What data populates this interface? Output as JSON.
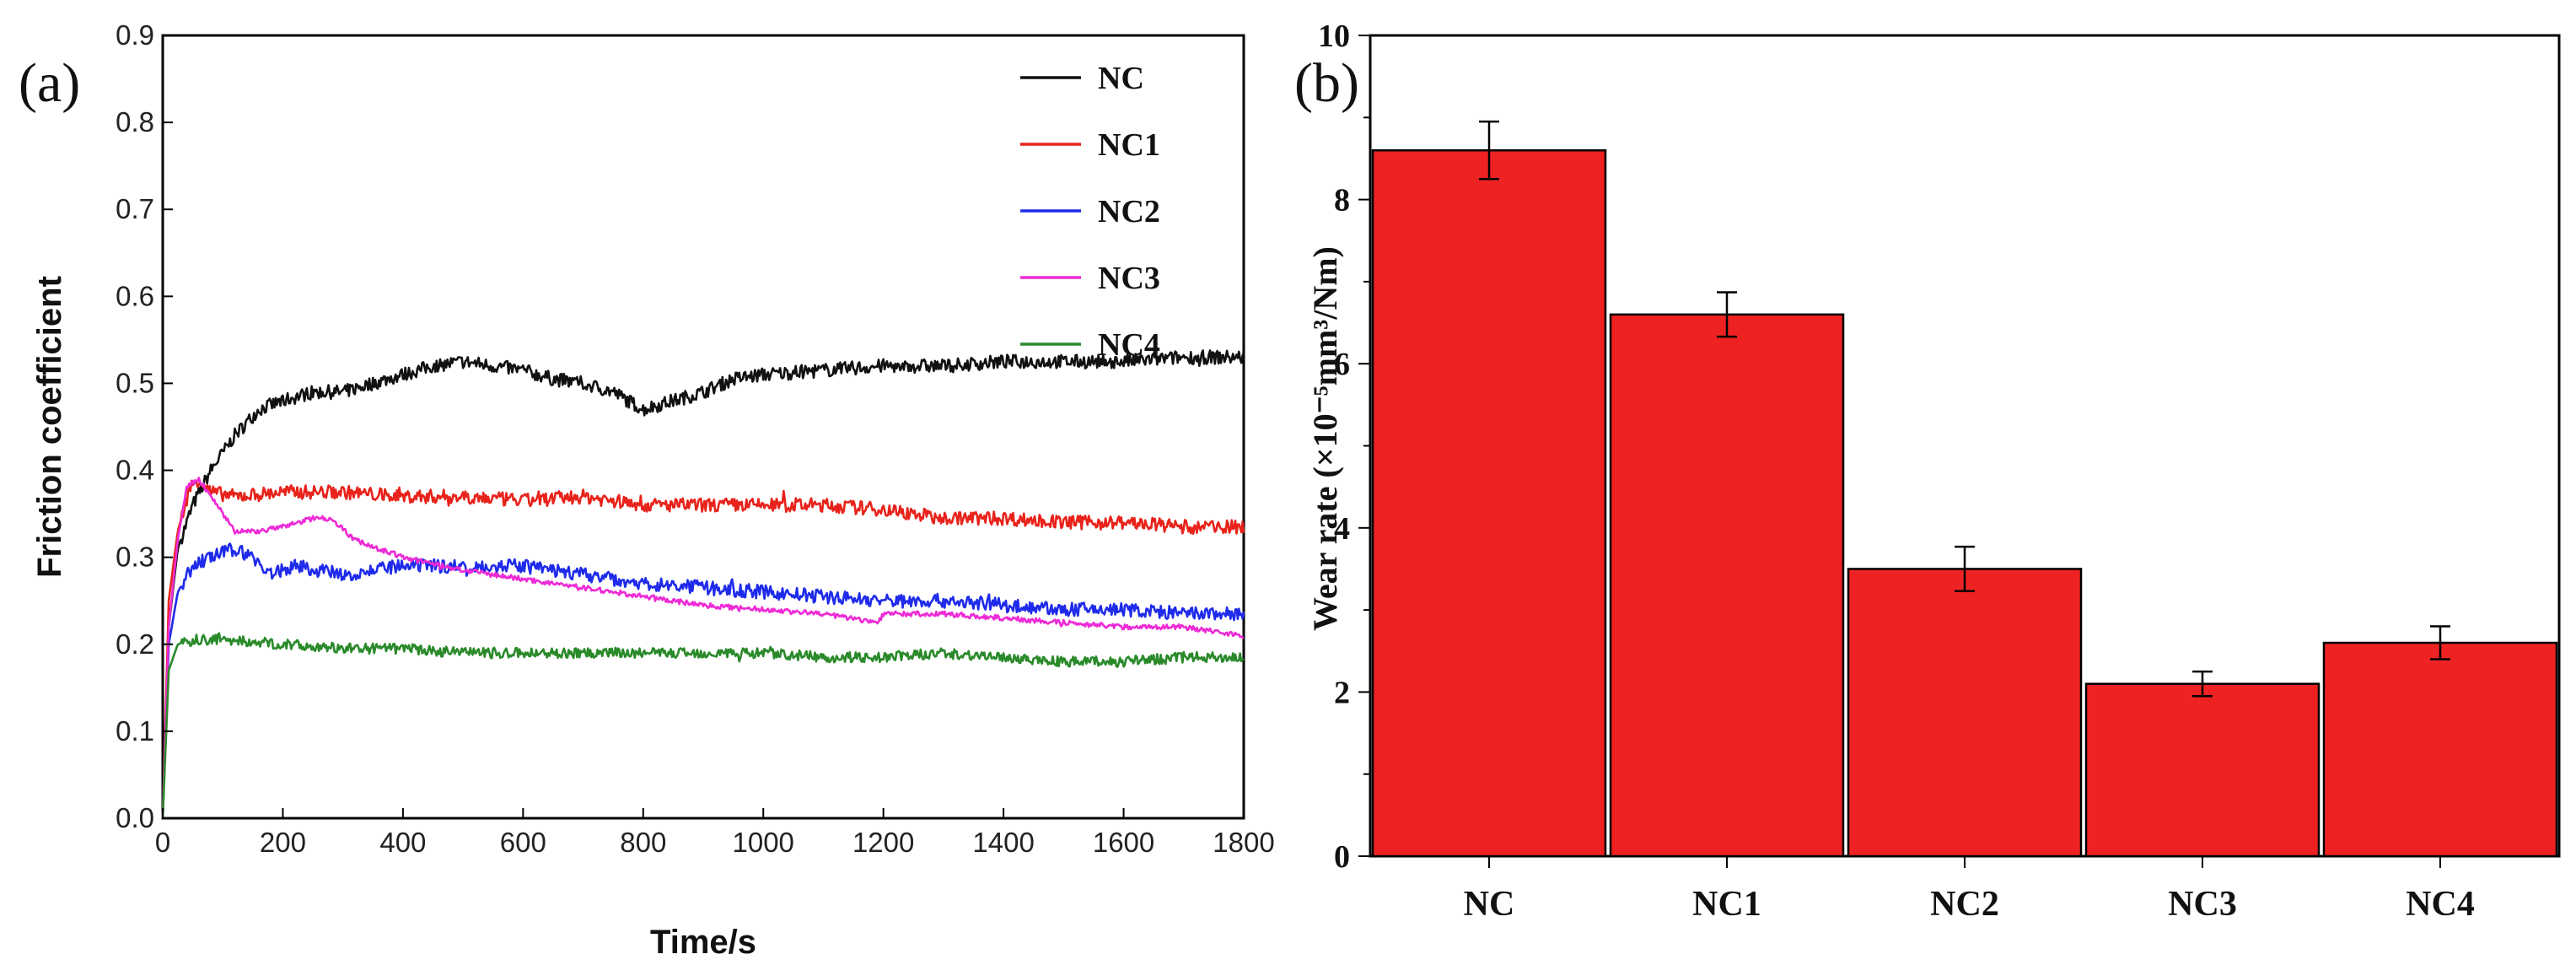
{
  "chart_data": [
    {
      "panel_label": "(a)",
      "type": "line",
      "xlabel": "Time/s",
      "ylabel": "Friction coefficient",
      "xlim": [
        0,
        1800
      ],
      "ylim": [
        0.0,
        0.9
      ],
      "xticks": [
        "0",
        "200",
        "400",
        "600",
        "800",
        "1000",
        "1200",
        "1400",
        "1600",
        "1800"
      ],
      "yticks": [
        "0.0",
        "0.1",
        "0.2",
        "0.3",
        "0.4",
        "0.5",
        "0.6",
        "0.7",
        "0.8",
        "0.9"
      ],
      "legend_position": "top-right",
      "series": [
        {
          "name": "NC",
          "color": "#111111",
          "noise": 0.008,
          "x": [
            0,
            10,
            25,
            50,
            80,
            120,
            160,
            200,
            250,
            300,
            350,
            400,
            450,
            500,
            550,
            600,
            650,
            700,
            750,
            800,
            850,
            900,
            950,
            1000,
            1100,
            1200,
            1300,
            1400,
            1500,
            1600,
            1700,
            1800
          ],
          "y": [
            0.0,
            0.22,
            0.31,
            0.36,
            0.4,
            0.44,
            0.47,
            0.48,
            0.49,
            0.49,
            0.5,
            0.51,
            0.52,
            0.525,
            0.52,
            0.515,
            0.505,
            0.5,
            0.49,
            0.47,
            0.48,
            0.49,
            0.505,
            0.51,
            0.515,
            0.52,
            0.52,
            0.525,
            0.525,
            0.525,
            0.53,
            0.53
          ]
        },
        {
          "name": "NC1",
          "color": "#e8231b",
          "noise": 0.008,
          "x": [
            0,
            10,
            25,
            45,
            60,
            80,
            120,
            200,
            300,
            400,
            500,
            600,
            700,
            800,
            900,
            1000,
            1100,
            1200,
            1300,
            1400,
            1500,
            1600,
            1700,
            1800
          ],
          "y": [
            0.0,
            0.25,
            0.33,
            0.38,
            0.39,
            0.375,
            0.37,
            0.375,
            0.375,
            0.37,
            0.37,
            0.365,
            0.37,
            0.36,
            0.36,
            0.36,
            0.36,
            0.355,
            0.345,
            0.345,
            0.34,
            0.34,
            0.335,
            0.335
          ]
        },
        {
          "name": "NC2",
          "color": "#1f2bea",
          "noise": 0.008,
          "x": [
            0,
            10,
            25,
            50,
            80,
            120,
            150,
            180,
            220,
            300,
            400,
            500,
            600,
            700,
            800,
            900,
            1000,
            1100,
            1200,
            1300,
            1400,
            1500,
            1600,
            1700,
            1800
          ],
          "y": [
            0.0,
            0.2,
            0.26,
            0.29,
            0.3,
            0.31,
            0.3,
            0.28,
            0.29,
            0.28,
            0.29,
            0.29,
            0.29,
            0.28,
            0.27,
            0.265,
            0.26,
            0.255,
            0.25,
            0.25,
            0.245,
            0.24,
            0.24,
            0.235,
            0.235
          ]
        },
        {
          "name": "NC3",
          "color": "#ee2ad6",
          "noise": 0.003,
          "x": [
            0,
            10,
            25,
            40,
            60,
            90,
            120,
            160,
            200,
            250,
            280,
            320,
            400,
            500,
            600,
            700,
            800,
            900,
            1000,
            1100,
            1190,
            1200,
            1300,
            1400,
            1500,
            1600,
            1700,
            1750,
            1800
          ],
          "y": [
            0.0,
            0.22,
            0.32,
            0.38,
            0.39,
            0.36,
            0.33,
            0.33,
            0.335,
            0.345,
            0.345,
            0.32,
            0.3,
            0.285,
            0.275,
            0.265,
            0.255,
            0.245,
            0.24,
            0.235,
            0.225,
            0.235,
            0.235,
            0.23,
            0.225,
            0.22,
            0.22,
            0.215,
            0.21
          ]
        },
        {
          "name": "NC4",
          "color": "#2a8a2a",
          "noise": 0.006,
          "x": [
            0,
            10,
            25,
            50,
            100,
            200,
            300,
            400,
            500,
            600,
            700,
            800,
            900,
            1000,
            1100,
            1200,
            1300,
            1400,
            1500,
            1600,
            1700,
            1800
          ],
          "y": [
            0.0,
            0.17,
            0.2,
            0.205,
            0.205,
            0.2,
            0.195,
            0.195,
            0.19,
            0.19,
            0.19,
            0.19,
            0.19,
            0.19,
            0.185,
            0.185,
            0.19,
            0.185,
            0.18,
            0.18,
            0.185,
            0.185
          ]
        }
      ]
    },
    {
      "panel_label": "(b)",
      "type": "bar",
      "xlabel": "",
      "ylabel": "Wear rate (×10⁻⁵mm³/Nm)",
      "ylim": [
        0,
        10
      ],
      "yticks": [
        "0",
        "2",
        "4",
        "6",
        "8",
        "10"
      ],
      "bar_color": "#ee2222",
      "categories": [
        "NC",
        "NC1",
        "NC2",
        "NC3",
        "NC4"
      ],
      "values": [
        8.6,
        6.6,
        3.5,
        2.1,
        2.6
      ],
      "errors": [
        0.35,
        0.27,
        0.27,
        0.15,
        0.2
      ]
    }
  ]
}
